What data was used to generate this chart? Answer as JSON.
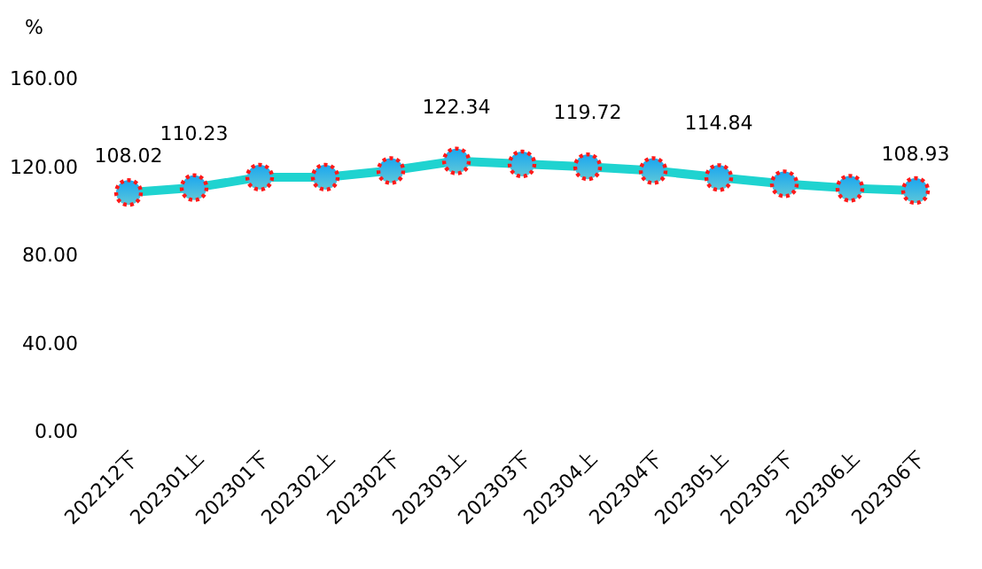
{
  "chart_data": {
    "type": "line",
    "ylabel": "%",
    "categories": [
      "202212下",
      "202301上",
      "202301下",
      "202302上",
      "202302下",
      "202303上",
      "202303下",
      "202304上",
      "202304下",
      "202305上",
      "202305下",
      "202306上",
      "202306下"
    ],
    "series": [
      {
        "color": "#1fd3d0",
        "values": [
          108.02,
          110.23,
          115,
          115,
          118,
          122.34,
          121,
          119.72,
          118,
          114.84,
          112,
          110,
          108.93
        ],
        "value_labels": [
          "108.02",
          "110.23",
          null,
          null,
          null,
          "122.34",
          null,
          "119.72",
          null,
          "114.84",
          null,
          null,
          "108.93"
        ]
      }
    ],
    "ylim": [
      0,
      160
    ],
    "yticks": [
      {
        "value": 0,
        "label": "0.00"
      },
      {
        "value": 40,
        "label": "40.00"
      },
      {
        "value": 80,
        "label": "80.00"
      },
      {
        "value": 120,
        "label": "120.00"
      },
      {
        "value": 160,
        "label": "160.00"
      }
    ],
    "marker": "circle",
    "line_style": "solid",
    "grid": false
  }
}
